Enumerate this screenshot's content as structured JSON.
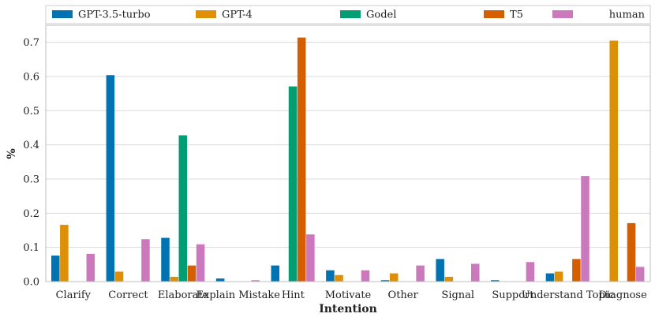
{
  "chart_data": {
    "type": "bar",
    "title": "",
    "xlabel": "Intention",
    "ylabel": "%",
    "ylim": [
      0,
      0.75
    ],
    "yticks": [
      0.0,
      0.1,
      0.2,
      0.3,
      0.4,
      0.5,
      0.6,
      0.7
    ],
    "ytick_labels": [
      "0.0",
      "0.1",
      "0.2",
      "0.3",
      "0.4",
      "0.5",
      "0.6",
      "0.7"
    ],
    "grid": "horizontal",
    "legend_position": "top",
    "categories": [
      "Clarify",
      "Correct",
      "Elaborate",
      "Explain Mistake",
      "Hint",
      "Motivate",
      "Other",
      "Signal",
      "Support",
      "Understand Topic",
      "Diagnose"
    ],
    "series": [
      {
        "name": "GPT-3.5-turbo",
        "color": "#0173b2",
        "values": [
          0.076,
          0.604,
          0.128,
          0.009,
          0.047,
          0.033,
          0.004,
          0.066,
          0.004,
          0.024,
          0.0
        ]
      },
      {
        "name": "GPT-4",
        "color": "#de8f05",
        "values": [
          0.166,
          0.029,
          0.014,
          0.0,
          0.0,
          0.019,
          0.024,
          0.014,
          0.0,
          0.029,
          0.705
        ]
      },
      {
        "name": "Godel",
        "color": "#029e73",
        "values": [
          0.0,
          0.0,
          0.428,
          0.0,
          0.571,
          0.0,
          0.0,
          0.0,
          0.0,
          0.0,
          0.0
        ]
      },
      {
        "name": "T5",
        "color": "#d55e00",
        "values": [
          0.0,
          0.0,
          0.047,
          0.0,
          0.714,
          0.0,
          0.0,
          0.0,
          0.0,
          0.066,
          0.171
        ]
      },
      {
        "name": "human",
        "color": "#cc78bc",
        "values": [
          0.081,
          0.124,
          0.109,
          0.004,
          0.138,
          0.033,
          0.047,
          0.052,
          0.057,
          0.309,
          0.043
        ]
      }
    ]
  }
}
